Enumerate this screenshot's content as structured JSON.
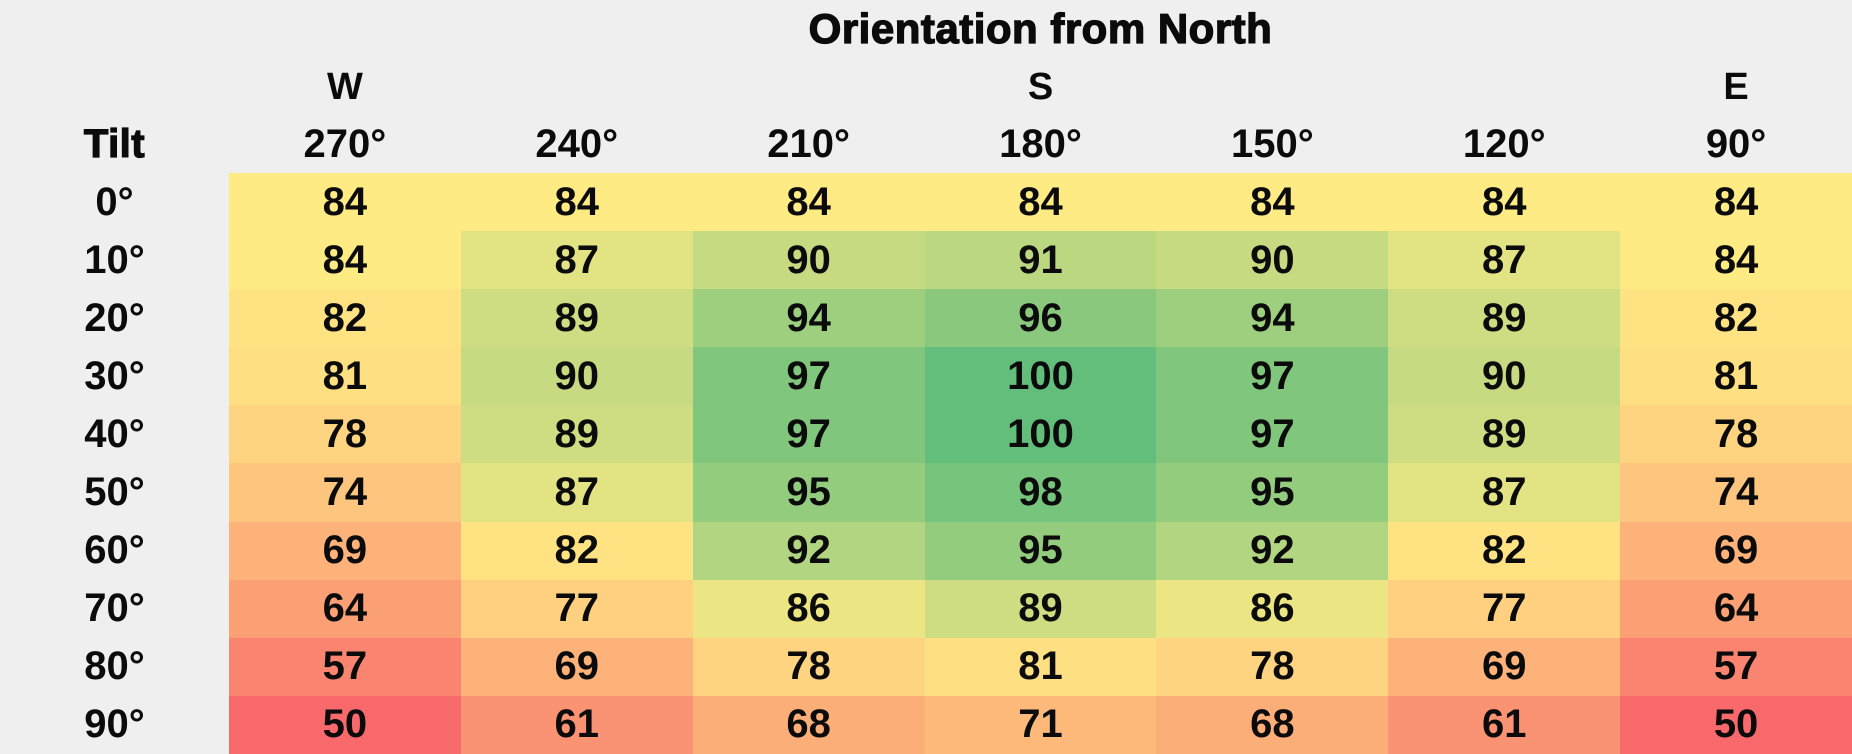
{
  "title": "Orientation from North",
  "axis": {
    "row_header": "Tilt"
  },
  "colors": {
    "background": "#EFEFEF",
    "text": "#0B0B0B"
  },
  "chart_data": {
    "type": "heatmap",
    "title": "Orientation from North",
    "columns": [
      "270°",
      "240°",
      "210°",
      "180°",
      "150°",
      "120°",
      "90°"
    ],
    "compass_labels": [
      "W",
      "",
      "",
      "S",
      "",
      "",
      "E"
    ],
    "rows": [
      "0°",
      "10°",
      "20°",
      "30°",
      "40°",
      "50°",
      "60°",
      "70°",
      "80°",
      "90°"
    ],
    "values": [
      [
        84,
        84,
        84,
        84,
        84,
        84,
        84
      ],
      [
        84,
        87,
        90,
        91,
        90,
        87,
        84
      ],
      [
        82,
        89,
        94,
        96,
        94,
        89,
        82
      ],
      [
        81,
        90,
        97,
        100,
        97,
        90,
        81
      ],
      [
        78,
        89,
        97,
        100,
        97,
        89,
        78
      ],
      [
        74,
        87,
        95,
        98,
        95,
        87,
        74
      ],
      [
        69,
        82,
        92,
        95,
        92,
        82,
        69
      ],
      [
        64,
        77,
        86,
        89,
        86,
        77,
        64
      ],
      [
        57,
        69,
        78,
        81,
        78,
        69,
        57
      ],
      [
        50,
        61,
        68,
        71,
        68,
        61,
        50
      ]
    ],
    "colormap": {
      "type": "3-color-scale",
      "min": {
        "value": 50,
        "color": "#F8696B"
      },
      "mid": {
        "value": 84,
        "color": "#FFEB84"
      },
      "max": {
        "value": 100,
        "color": "#63BE7B"
      }
    },
    "legend": "none",
    "grid_lines": "off"
  }
}
